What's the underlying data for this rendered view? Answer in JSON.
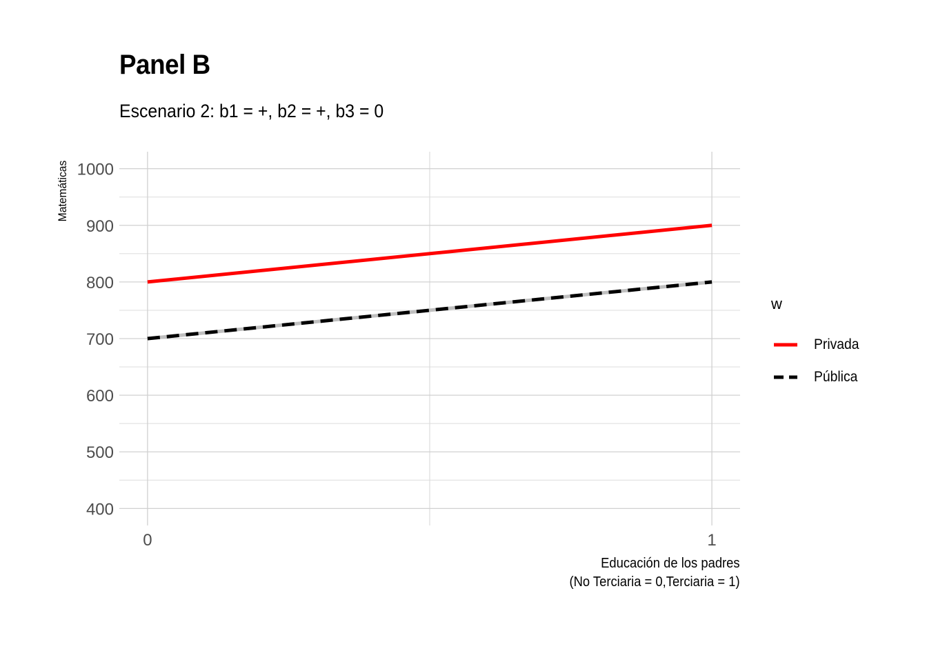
{
  "chart_data": {
    "type": "line",
    "title": "Panel B",
    "subtitle": "Escenario 2: b1 = +, b2 = +, b3 = 0",
    "xlabel": [
      "Educación de los padres",
      "(No Terciaria = 0,Terciaria = 1)"
    ],
    "ylabel": "Matemáticas",
    "x_ticks": [
      "0",
      "1"
    ],
    "y_ticks": [
      "400",
      "500",
      "600",
      "700",
      "800",
      "900",
      "1000"
    ],
    "xlim": [
      -0.05,
      1.05
    ],
    "ylim": [
      370,
      1030
    ],
    "grid": true,
    "legend_title": "w",
    "legend_position": "right",
    "series": [
      {
        "name": "Privada",
        "x": [
          0,
          1
        ],
        "values": [
          800,
          900
        ],
        "color": "#ff0000",
        "style": "solid"
      },
      {
        "name": "Pública",
        "x": [
          0,
          1
        ],
        "values": [
          700,
          800
        ],
        "color": "#000000",
        "style": "dashed"
      }
    ]
  }
}
